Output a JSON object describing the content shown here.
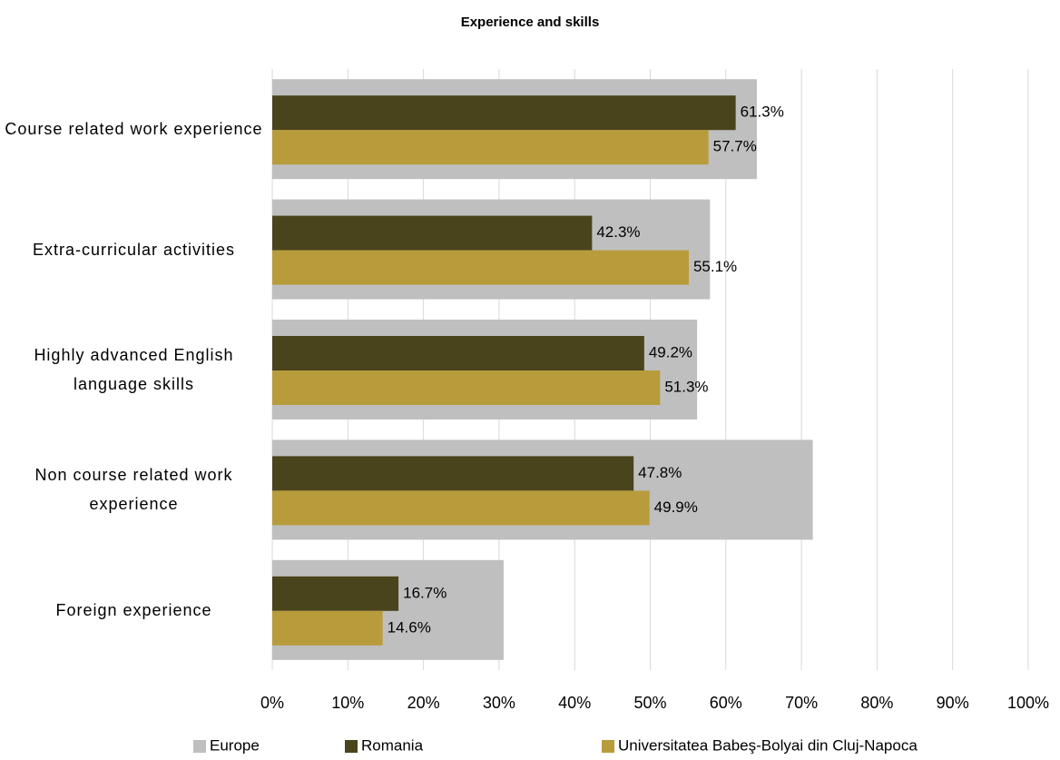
{
  "chart_data": {
    "type": "bar",
    "orientation": "horizontal",
    "title": "Experience and skills",
    "categories": [
      "Course related work experience",
      "Extra-curricular activities",
      "Highly advanced English language skills",
      "Non course related work experience",
      "Foreign experience"
    ],
    "series": [
      {
        "name": "Europe",
        "color": "#bfbfbf",
        "values": [
          64.1,
          57.9,
          56.2,
          71.5,
          30.6
        ]
      },
      {
        "name": "Romania",
        "color": "#4a441c",
        "values": [
          61.3,
          42.3,
          49.2,
          47.8,
          16.7
        ],
        "value_labels": [
          "61.3%",
          "42.3%",
          "49.2%",
          "47.8%",
          "16.7%"
        ]
      },
      {
        "name": "Universitatea Babeş-Bolyai din Cluj-Napoca",
        "color": "#b89b3b",
        "values": [
          57.7,
          55.1,
          51.3,
          49.9,
          14.6
        ],
        "value_labels": [
          "57.7%",
          "55.1%",
          "51.3%",
          "49.9%",
          "14.6%"
        ]
      }
    ],
    "xlim": [
      0,
      100
    ],
    "xticks": [
      {
        "value": 0,
        "label": "0%"
      },
      {
        "value": 10,
        "label": "10%"
      },
      {
        "value": 20,
        "label": "20%"
      },
      {
        "value": 30,
        "label": "30%"
      },
      {
        "value": 40,
        "label": "40%"
      },
      {
        "value": 50,
        "label": "50%"
      },
      {
        "value": 60,
        "label": "60%"
      },
      {
        "value": 70,
        "label": "70%"
      },
      {
        "value": 80,
        "label": "80%"
      },
      {
        "value": 90,
        "label": "90%"
      },
      {
        "value": 100,
        "label": "100%"
      }
    ],
    "grid": true,
    "legend": "bottom"
  }
}
